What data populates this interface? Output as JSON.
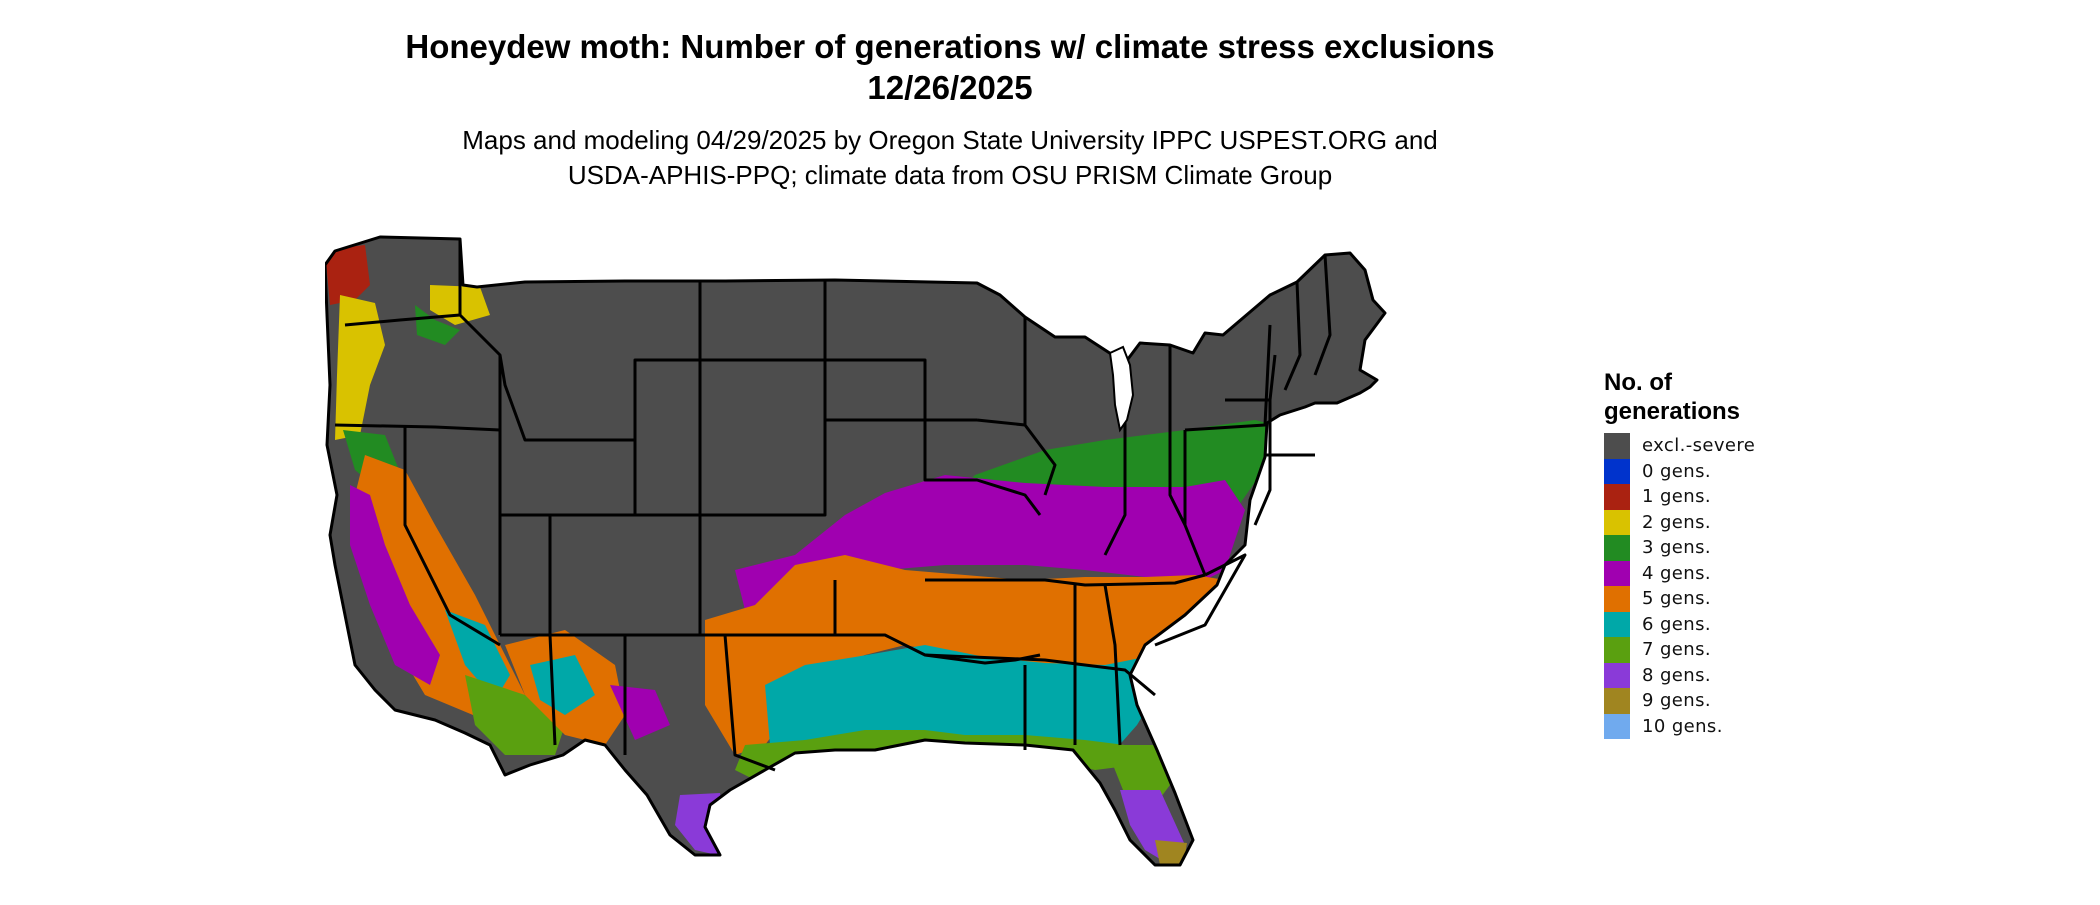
{
  "title": {
    "line1": "Honeydew moth: Number of generations w/ climate stress exclusions",
    "line2": "12/26/2025"
  },
  "subtitle": {
    "line1": "Maps and modeling 04/29/2025 by Oregon State University IPPC USPEST.ORG and",
    "line2": "USDA-APHIS-PPQ; climate data from OSU PRISM Climate Group"
  },
  "legend": {
    "title_line1": "No. of",
    "title_line2": "generations",
    "items": [
      {
        "label": "excl.-severe",
        "color": "#4d4d4d"
      },
      {
        "label": "0 gens.",
        "color": "#0033cc"
      },
      {
        "label": "1 gens.",
        "color": "#aa2211"
      },
      {
        "label": "2 gens.",
        "color": "#d9c200"
      },
      {
        "label": "3 gens.",
        "color": "#228b22"
      },
      {
        "label": "4 gens.",
        "color": "#a000b0"
      },
      {
        "label": "5 gens.",
        "color": "#e07000"
      },
      {
        "label": "6 gens.",
        "color": "#00a8a8"
      },
      {
        "label": "7 gens.",
        "color": "#5aa010"
      },
      {
        "label": "8 gens.",
        "color": "#8a3ad8"
      },
      {
        "label": "9 gens.",
        "color": "#a08520"
      },
      {
        "label": "10 gens.",
        "color": "#70aaee"
      }
    ]
  }
}
